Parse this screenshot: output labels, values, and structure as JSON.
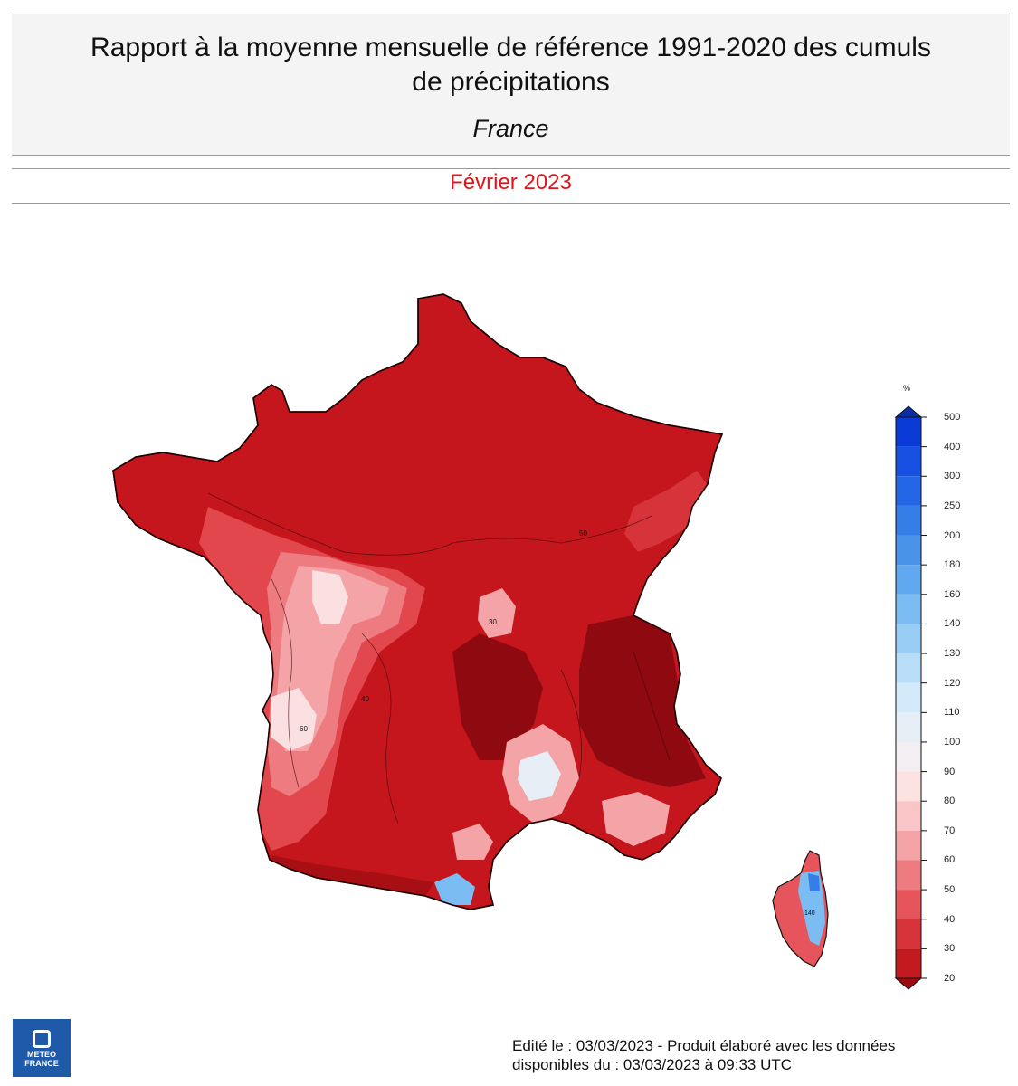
{
  "header": {
    "title_line1": "Rapport à la moyenne mensuelle de référence 1991-2020 des cumuls",
    "title_line2": "de précipitations",
    "region": "France"
  },
  "period": "Février 2023",
  "legend": {
    "unit": "%",
    "ticks": [
      "500",
      "400",
      "300",
      "250",
      "200",
      "180",
      "160",
      "140",
      "130",
      "120",
      "110",
      "100",
      "90",
      "80",
      "70",
      "60",
      "50",
      "40",
      "30",
      "20"
    ],
    "colors": [
      "#0a3bd6",
      "#1651e2",
      "#2467e6",
      "#357ee8",
      "#4a93eb",
      "#60a8ef",
      "#7bbcf2",
      "#98cdf5",
      "#b7ddf8",
      "#d3eafa",
      "#e6eef6",
      "#f2eef2",
      "#fde2e2",
      "#f9c5c6",
      "#f4a3a6",
      "#ee7b80",
      "#e5555b",
      "#d6343a",
      "#c31a20"
    ],
    "over_color": "#0a2fa8",
    "under_color": "#9a0a0f"
  },
  "map": {
    "main_fill": "#c4161c",
    "areas": {
      "northeast": "50",
      "west": "60",
      "southwest": "40",
      "central": "30",
      "alps": "30",
      "corsica": "140"
    }
  },
  "footer": {
    "edited": "Edité le : 03/03/2023 - Produit élaboré avec les données\ndisponibles du : 03/03/2023 à 09:33 UTC",
    "logo_line1": "METEO",
    "logo_line2": "FRANCE"
  }
}
